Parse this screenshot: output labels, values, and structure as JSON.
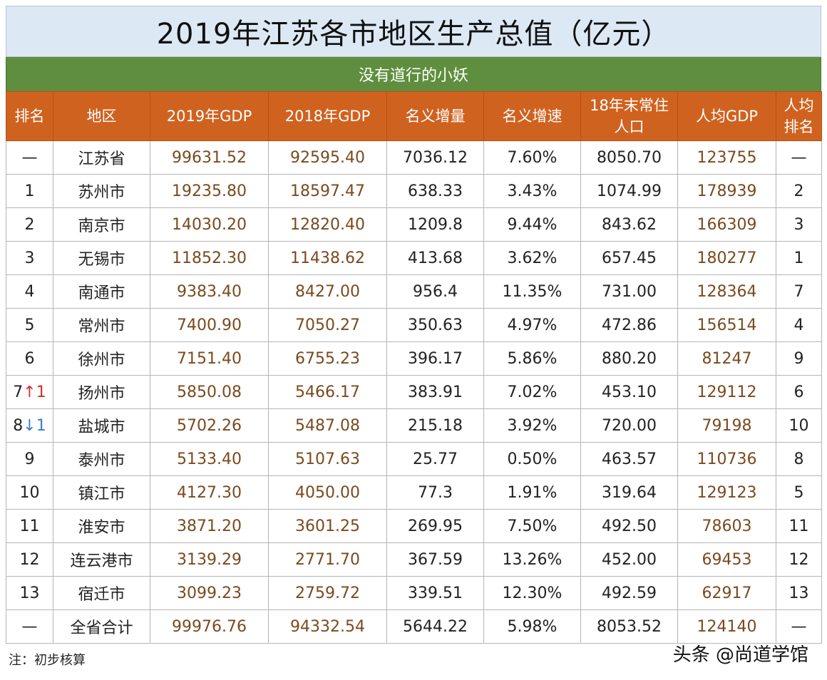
{
  "title": "2019年江苏各市地区生产总值（亿元）",
  "subtitle": "没有道行的小妖",
  "headers": {
    "rank": "排名",
    "region": "地区",
    "gdp2019": "2019年GDP",
    "gdp2018": "2018年GDP",
    "increase": "名义增量",
    "growth": "名义增速",
    "pop_line1": "18年末常住",
    "pop_line2": "人口",
    "per_capita": "人均GDP",
    "pc_rank_line1": "人均",
    "pc_rank_line2": "排名"
  },
  "rows": [
    {
      "rank": "—",
      "arrow": "",
      "arrow_num": "",
      "region": "江苏省",
      "gdp2019": "99631.52",
      "gdp2018": "92595.40",
      "increase": "7036.12",
      "growth": "7.60%",
      "population": "8050.70",
      "per_capita": "123755",
      "pc_rank": "—"
    },
    {
      "rank": "1",
      "arrow": "",
      "arrow_num": "",
      "region": "苏州市",
      "gdp2019": "19235.80",
      "gdp2018": "18597.47",
      "increase": "638.33",
      "growth": "3.43%",
      "population": "1074.99",
      "per_capita": "178939",
      "pc_rank": "2"
    },
    {
      "rank": "2",
      "arrow": "",
      "arrow_num": "",
      "region": "南京市",
      "gdp2019": "14030.20",
      "gdp2018": "12820.40",
      "increase": "1209.8",
      "growth": "9.44%",
      "population": "843.62",
      "per_capita": "166309",
      "pc_rank": "3"
    },
    {
      "rank": "3",
      "arrow": "",
      "arrow_num": "",
      "region": "无锡市",
      "gdp2019": "11852.30",
      "gdp2018": "11438.62",
      "increase": "413.68",
      "growth": "3.62%",
      "population": "657.45",
      "per_capita": "180277",
      "pc_rank": "1"
    },
    {
      "rank": "4",
      "arrow": "",
      "arrow_num": "",
      "region": "南通市",
      "gdp2019": "9383.40",
      "gdp2018": "8427.00",
      "increase": "956.4",
      "growth": "11.35%",
      "population": "731.00",
      "per_capita": "128364",
      "pc_rank": "7"
    },
    {
      "rank": "5",
      "arrow": "",
      "arrow_num": "",
      "region": "常州市",
      "gdp2019": "7400.90",
      "gdp2018": "7050.27",
      "increase": "350.63",
      "growth": "4.97%",
      "population": "472.86",
      "per_capita": "156514",
      "pc_rank": "4"
    },
    {
      "rank": "6",
      "arrow": "",
      "arrow_num": "",
      "region": "徐州市",
      "gdp2019": "7151.40",
      "gdp2018": "6755.23",
      "increase": "396.17",
      "growth": "5.86%",
      "population": "880.20",
      "per_capita": "81247",
      "pc_rank": "9"
    },
    {
      "rank": "7",
      "arrow": "↑",
      "arrow_num": "1",
      "dir": "up",
      "region": "扬州市",
      "gdp2019": "5850.08",
      "gdp2018": "5466.17",
      "increase": "383.91",
      "growth": "7.02%",
      "population": "453.10",
      "per_capita": "129112",
      "pc_rank": "6"
    },
    {
      "rank": "8",
      "arrow": "↓",
      "arrow_num": "1",
      "dir": "down",
      "region": "盐城市",
      "gdp2019": "5702.26",
      "gdp2018": "5487.08",
      "increase": "215.18",
      "growth": "3.92%",
      "population": "720.00",
      "per_capita": "79198",
      "pc_rank": "10"
    },
    {
      "rank": "9",
      "arrow": "",
      "arrow_num": "",
      "region": "泰州市",
      "gdp2019": "5133.40",
      "gdp2018": "5107.63",
      "increase": "25.77",
      "growth": "0.50%",
      "population": "463.57",
      "per_capita": "110736",
      "pc_rank": "8"
    },
    {
      "rank": "10",
      "arrow": "",
      "arrow_num": "",
      "region": "镇江市",
      "gdp2019": "4127.30",
      "gdp2018": "4050.00",
      "increase": "77.3",
      "growth": "1.91%",
      "population": "319.64",
      "per_capita": "129123",
      "pc_rank": "5"
    },
    {
      "rank": "11",
      "arrow": "",
      "arrow_num": "",
      "region": "淮安市",
      "gdp2019": "3871.20",
      "gdp2018": "3601.25",
      "increase": "269.95",
      "growth": "7.50%",
      "population": "492.50",
      "per_capita": "78603",
      "pc_rank": "11"
    },
    {
      "rank": "12",
      "arrow": "",
      "arrow_num": "",
      "region": "连云港市",
      "gdp2019": "3139.29",
      "gdp2018": "2771.70",
      "increase": "367.59",
      "growth": "13.26%",
      "population": "452.00",
      "per_capita": "69453",
      "pc_rank": "12"
    },
    {
      "rank": "13",
      "arrow": "",
      "arrow_num": "",
      "region": "宿迁市",
      "gdp2019": "3099.23",
      "gdp2018": "2759.72",
      "increase": "339.51",
      "growth": "12.30%",
      "population": "492.59",
      "per_capita": "62917",
      "pc_rank": "13"
    },
    {
      "rank": "—",
      "arrow": "",
      "arrow_num": "",
      "region": "全省合计",
      "gdp2019": "99976.76",
      "gdp2018": "94332.54",
      "increase": "5644.22",
      "growth": "5.98%",
      "population": "8053.52",
      "per_capita": "124140",
      "pc_rank": "—"
    }
  ],
  "note": "注：初步核算",
  "watermark": "头条 @尚道学馆",
  "colors": {
    "title_bg": "#dce9f5",
    "subtitle_bg": "#5f8f3e",
    "header_bg": "#d0621f",
    "up_arrow": "#d32f2f",
    "down_arrow": "#3b7ec9",
    "gdp_text": "#7a4a1e"
  }
}
